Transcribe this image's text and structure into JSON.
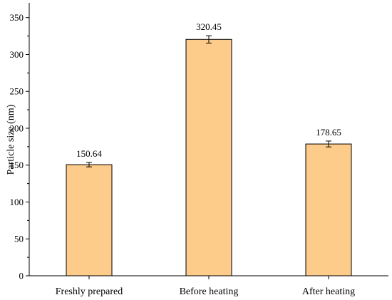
{
  "chart_data": {
    "type": "bar",
    "categories": [
      "Freshly prepared",
      "Before heating",
      "After heating"
    ],
    "values": [
      150.64,
      320.45,
      178.65
    ],
    "errors": [
      3,
      5,
      4
    ],
    "data_labels": [
      "150.64",
      "320.45",
      "178.65"
    ],
    "xlabel": "",
    "ylabel": "Particle size (nm)",
    "ylim": [
      0,
      370
    ],
    "yticks": [
      0,
      50,
      100,
      150,
      200,
      250,
      300,
      350
    ],
    "minor_ticks": true,
    "grid": false,
    "legend": "none",
    "bar_color": "#FDCC8A",
    "bar_edge_color": "#000000"
  }
}
